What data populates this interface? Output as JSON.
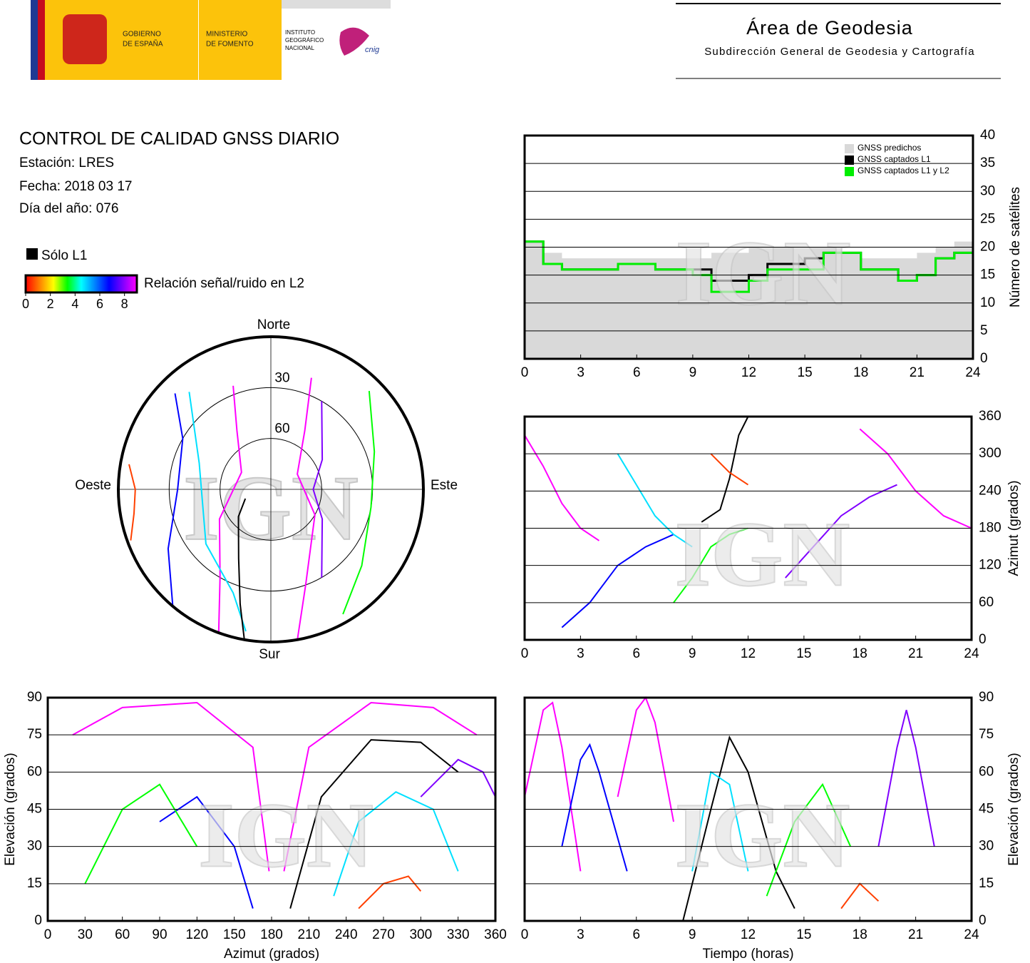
{
  "header": {
    "government": [
      "GOBIERNO",
      "DE ESPAÑA"
    ],
    "ministry": [
      "MINISTERIO",
      "DE FOMENTO"
    ],
    "institute": [
      "INSTITUTO",
      "GEOGRÁFICO",
      "NACIONAL"
    ],
    "logo_text": "cnig",
    "title": "Área de Geodesia",
    "subtitle": "Subdirección General de Geodesia y Cartografía"
  },
  "report": {
    "title": "CONTROL DE CALIDAD GNSS DIARIO",
    "station": "Estación: LRES",
    "date": "Fecha: 2018 03 17",
    "day": "Día del año: 076"
  },
  "legend": {
    "l1_only": "Sólo L1",
    "l1_color": "#000000",
    "colorbar": {
      "label": "Relación señal/ruido en L2",
      "lim": [
        0,
        9
      ],
      "ticks": [
        0,
        2,
        4,
        6,
        8
      ],
      "colors": [
        "#ff0000",
        "#ff8000",
        "#ffff00",
        "#00ff00",
        "#00ffff",
        "#0080ff",
        "#0000ff",
        "#8000ff",
        "#ff00ff"
      ]
    }
  },
  "chart_data": [
    {
      "type": "polar",
      "direction_labels": {
        "north": "Norte",
        "south": "Sur",
        "east": "Este",
        "west": "Oeste"
      },
      "ylim": [
        0,
        90
      ],
      "yticks": [
        30,
        60
      ],
      "watermark": "IGN",
      "series": [
        {
          "color": "#ff00ff",
          "x": [
            200,
            210,
            240,
            300,
            330,
            340
          ],
          "values": [
            0,
            30,
            55,
            70,
            50,
            25
          ]
        },
        {
          "color": "#ff00ff",
          "x": [
            170,
            160,
            120,
            60,
            30,
            20
          ],
          "values": [
            0,
            30,
            60,
            72,
            50,
            20
          ]
        },
        {
          "color": "#0000ff",
          "x": [
            220,
            240,
            270,
            300,
            315
          ],
          "values": [
            0,
            20,
            35,
            30,
            10
          ]
        },
        {
          "color": "#00e0ff",
          "x": [
            190,
            200,
            230,
            290,
            320
          ],
          "values": [
            5,
            25,
            40,
            45,
            15
          ]
        },
        {
          "color": "#00ff00",
          "x": [
            150,
            130,
            100,
            70,
            45
          ],
          "values": [
            5,
            20,
            30,
            25,
            8
          ]
        },
        {
          "color": "#000000",
          "x": [
            190,
            195,
            205,
            230,
            250
          ],
          "values": [
            0,
            20,
            45,
            65,
            74
          ]
        },
        {
          "color": "#ff4000",
          "x": [
            250,
            260,
            270,
            280
          ],
          "values": [
            2,
            8,
            10,
            5
          ]
        },
        {
          "color": "#8000ff",
          "x": [
            30,
            60,
            90,
            120,
            150
          ],
          "values": [
            30,
            55,
            65,
            55,
            30
          ]
        }
      ]
    },
    {
      "type": "step",
      "xlim": [
        0,
        24
      ],
      "xticks": [
        0,
        3,
        6,
        9,
        12,
        15,
        18,
        21,
        24
      ],
      "ylim": [
        0,
        40
      ],
      "yticks": [
        0,
        5,
        10,
        15,
        20,
        25,
        30,
        35,
        40
      ],
      "grid": true,
      "y_label": "Número de satélites",
      "y_axis_side": "right",
      "legend": "top-right",
      "watermark": "IGN",
      "x": [
        0,
        1,
        2,
        3,
        4,
        5,
        6,
        7,
        8,
        9,
        10,
        11,
        12,
        13,
        14,
        15,
        16,
        17,
        18,
        19,
        20,
        21,
        22,
        23,
        24
      ],
      "series": [
        {
          "name": "GNSS predichos",
          "color": "#d9d9d9",
          "area": true,
          "values": [
            21,
            19,
            18,
            18,
            18,
            18,
            18,
            18,
            18,
            18,
            19,
            19,
            20,
            20,
            20,
            20,
            20,
            19,
            18,
            18,
            18,
            19,
            20,
            21,
            20
          ]
        },
        {
          "name": "GNSS captados L1",
          "color": "#000000",
          "values": [
            21,
            17,
            16,
            16,
            16,
            17,
            17,
            16,
            16,
            16,
            14,
            14,
            15,
            17,
            17,
            18,
            19,
            19,
            16,
            16,
            14,
            15,
            18,
            19,
            17
          ]
        },
        {
          "name": "GNSS captados L1 y L2",
          "color": "#00ee00",
          "values": [
            21,
            17,
            16,
            16,
            16,
            17,
            17,
            16,
            16,
            15,
            12,
            12,
            14,
            16,
            16,
            16,
            19,
            19,
            16,
            16,
            14,
            15,
            18,
            19,
            17
          ]
        }
      ]
    },
    {
      "type": "line",
      "xlim": [
        0,
        24
      ],
      "xticks": [
        0,
        3,
        6,
        9,
        12,
        15,
        18,
        21,
        24
      ],
      "ylim": [
        0,
        360
      ],
      "yticks": [
        0,
        60,
        120,
        180,
        240,
        300,
        360
      ],
      "grid": true,
      "y_label": "Azimut (grados)",
      "y_axis_side": "right",
      "watermark": "IGN",
      "series": [
        {
          "color": "#ff00ff",
          "x": [
            0,
            1,
            2,
            3,
            4
          ],
          "values": [
            330,
            280,
            220,
            180,
            160
          ]
        },
        {
          "color": "#0000ff",
          "x": [
            2,
            3.5,
            5,
            6.5,
            8
          ],
          "values": [
            20,
            60,
            120,
            150,
            170
          ]
        },
        {
          "color": "#00e0ff",
          "x": [
            5,
            6,
            7,
            8,
            9
          ],
          "values": [
            300,
            250,
            200,
            170,
            150
          ]
        },
        {
          "color": "#00ff00",
          "x": [
            8,
            9,
            10,
            11,
            12
          ],
          "values": [
            60,
            100,
            150,
            170,
            180
          ]
        },
        {
          "color": "#000000",
          "x": [
            9.5,
            10.5,
            11,
            11.5,
            12
          ],
          "values": [
            190,
            210,
            260,
            330,
            360
          ]
        },
        {
          "color": "#ff4000",
          "x": [
            10,
            11,
            12
          ],
          "values": [
            300,
            270,
            250
          ]
        },
        {
          "color": "#8000ff",
          "x": [
            14,
            15.5,
            17,
            18.5,
            20
          ],
          "values": [
            100,
            150,
            200,
            230,
            250
          ]
        },
        {
          "color": "#ff00ff",
          "x": [
            18,
            19.5,
            21,
            22.5,
            24
          ],
          "values": [
            340,
            300,
            240,
            200,
            180
          ]
        }
      ]
    },
    {
      "type": "line",
      "xlim": [
        0,
        360
      ],
      "xticks": [
        0,
        30,
        60,
        90,
        120,
        150,
        180,
        210,
        240,
        270,
        300,
        330,
        360
      ],
      "ylim": [
        0,
        90
      ],
      "yticks": [
        0,
        15,
        30,
        45,
        60,
        75,
        90
      ],
      "grid": true,
      "x_label": "Azimut (grados)",
      "y_label": "Elevación (grados)",
      "y_axis_side": "left",
      "watermark": "IGN",
      "series": [
        {
          "color": "#ff00ff",
          "x": [
            20,
            60,
            120,
            165,
            178
          ],
          "values": [
            75,
            86,
            88,
            70,
            20
          ]
        },
        {
          "color": "#ff00ff",
          "x": [
            190,
            210,
            260,
            310,
            345
          ],
          "values": [
            20,
            70,
            88,
            86,
            75
          ]
        },
        {
          "color": "#000000",
          "x": [
            195,
            220,
            260,
            300,
            330
          ],
          "values": [
            5,
            50,
            73,
            72,
            60
          ]
        },
        {
          "color": "#0000ff",
          "x": [
            90,
            120,
            150,
            165
          ],
          "values": [
            40,
            50,
            30,
            5
          ]
        },
        {
          "color": "#00e0ff",
          "x": [
            230,
            250,
            280,
            310,
            330
          ],
          "values": [
            10,
            40,
            52,
            45,
            20
          ]
        },
        {
          "color": "#00ff00",
          "x": [
            30,
            60,
            90,
            120
          ],
          "values": [
            15,
            45,
            55,
            30
          ]
        },
        {
          "color": "#ff4000",
          "x": [
            250,
            270,
            290,
            300
          ],
          "values": [
            5,
            15,
            18,
            12
          ]
        },
        {
          "color": "#8000ff",
          "x": [
            300,
            330,
            350,
            360
          ],
          "values": [
            50,
            65,
            60,
            50
          ]
        }
      ]
    },
    {
      "type": "line",
      "xlim": [
        0,
        24
      ],
      "xticks": [
        0,
        3,
        6,
        9,
        12,
        15,
        18,
        21,
        24
      ],
      "ylim": [
        0,
        90
      ],
      "yticks": [
        0,
        15,
        30,
        45,
        60,
        75,
        90
      ],
      "grid": true,
      "x_label": "Tiempo (horas)",
      "y_label": "Elevación (grados)",
      "y_axis_side": "right",
      "watermark": "IGN",
      "series": [
        {
          "color": "#000000",
          "x": [
            8.5,
            10,
            11,
            12,
            13.5,
            14.5
          ],
          "values": [
            0,
            45,
            74,
            60,
            20,
            5
          ]
        },
        {
          "color": "#ff00ff",
          "x": [
            0,
            1,
            1.5,
            2,
            3
          ],
          "values": [
            50,
            85,
            88,
            70,
            20
          ]
        },
        {
          "color": "#0000ff",
          "x": [
            2,
            3,
            3.5,
            4,
            5.5
          ],
          "values": [
            30,
            65,
            71,
            60,
            20
          ]
        },
        {
          "color": "#ff00ff",
          "x": [
            5,
            6,
            6.5,
            7,
            8
          ],
          "values": [
            50,
            85,
            90,
            80,
            40
          ]
        },
        {
          "color": "#00e0ff",
          "x": [
            9,
            10,
            11,
            12
          ],
          "values": [
            20,
            60,
            55,
            20
          ]
        },
        {
          "color": "#00ff00",
          "x": [
            13,
            14.5,
            16,
            17.5
          ],
          "values": [
            10,
            40,
            55,
            30
          ]
        },
        {
          "color": "#ff4000",
          "x": [
            17,
            18,
            19
          ],
          "values": [
            5,
            15,
            8
          ]
        },
        {
          "color": "#8000ff",
          "x": [
            19,
            20,
            20.5,
            21,
            22
          ],
          "values": [
            30,
            70,
            85,
            70,
            30
          ]
        }
      ]
    }
  ]
}
